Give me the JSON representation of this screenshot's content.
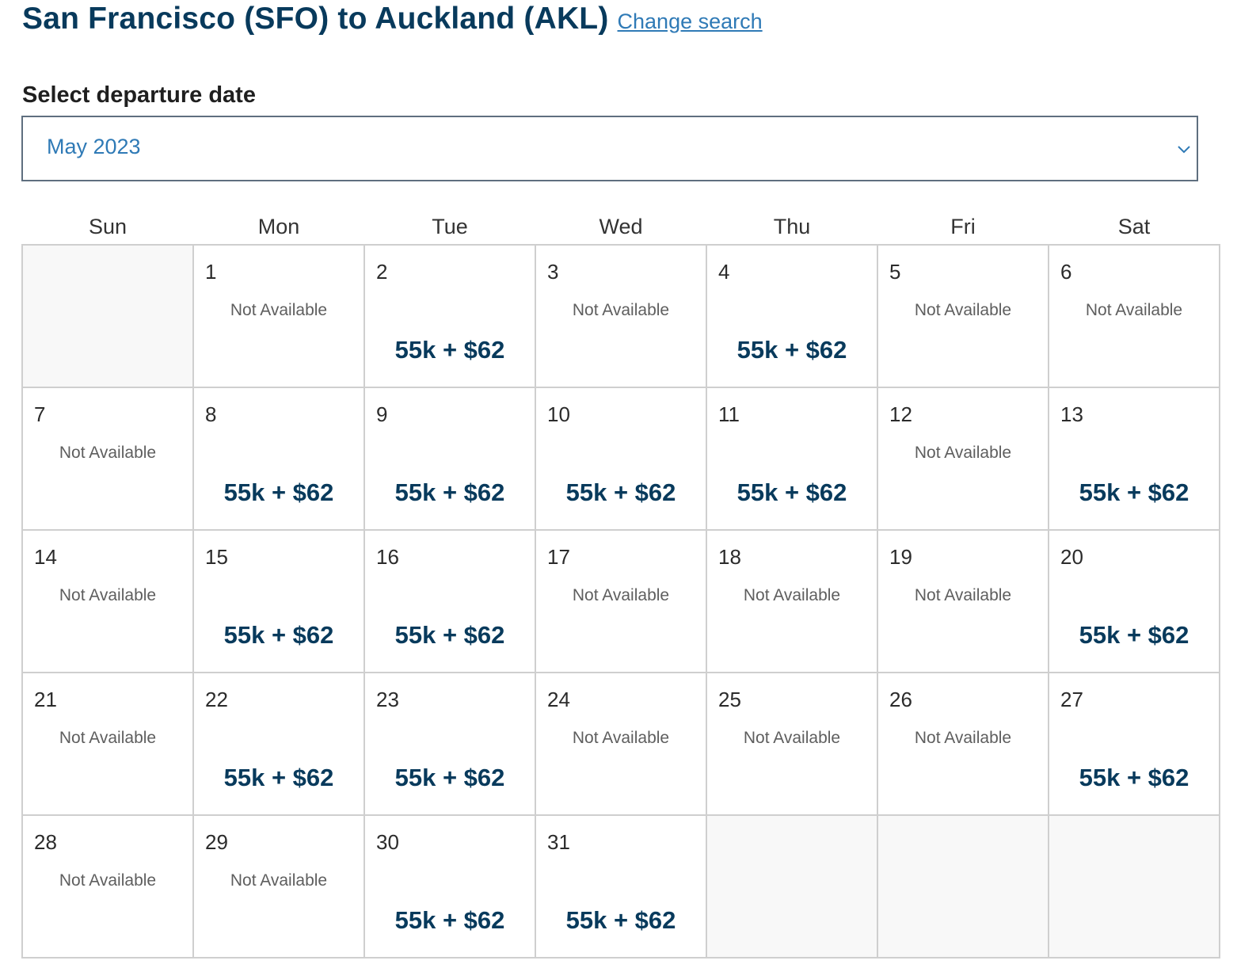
{
  "header": {
    "title": "San Francisco (SFO) to Auckland (AKL)",
    "change_search": "Change search"
  },
  "date_picker": {
    "label": "Select departure date",
    "selected_month": "May 2023"
  },
  "weekdays": [
    "Sun",
    "Mon",
    "Tue",
    "Wed",
    "Thu",
    "Fri",
    "Sat"
  ],
  "calendar": {
    "first_weekday_index": 1,
    "days": [
      {
        "day": "1",
        "status": "Not Available"
      },
      {
        "day": "2",
        "price": "55k + $62"
      },
      {
        "day": "3",
        "status": "Not Available"
      },
      {
        "day": "4",
        "price": "55k + $62"
      },
      {
        "day": "5",
        "status": "Not Available"
      },
      {
        "day": "6",
        "status": "Not Available"
      },
      {
        "day": "7",
        "status": "Not Available"
      },
      {
        "day": "8",
        "price": "55k + $62"
      },
      {
        "day": "9",
        "price": "55k + $62"
      },
      {
        "day": "10",
        "price": "55k + $62"
      },
      {
        "day": "11",
        "price": "55k + $62"
      },
      {
        "day": "12",
        "status": "Not Available"
      },
      {
        "day": "13",
        "price": "55k + $62"
      },
      {
        "day": "14",
        "status": "Not Available"
      },
      {
        "day": "15",
        "price": "55k + $62"
      },
      {
        "day": "16",
        "price": "55k + $62"
      },
      {
        "day": "17",
        "status": "Not Available"
      },
      {
        "day": "18",
        "status": "Not Available"
      },
      {
        "day": "19",
        "status": "Not Available"
      },
      {
        "day": "20",
        "price": "55k + $62"
      },
      {
        "day": "21",
        "status": "Not Available"
      },
      {
        "day": "22",
        "price": "55k + $62"
      },
      {
        "day": "23",
        "price": "55k + $62"
      },
      {
        "day": "24",
        "status": "Not Available"
      },
      {
        "day": "25",
        "status": "Not Available"
      },
      {
        "day": "26",
        "status": "Not Available"
      },
      {
        "day": "27",
        "price": "55k + $62"
      },
      {
        "day": "28",
        "status": "Not Available"
      },
      {
        "day": "29",
        "status": "Not Available"
      },
      {
        "day": "30",
        "price": "55k + $62"
      },
      {
        "day": "31",
        "price": "55k + $62"
      }
    ],
    "trailing_empty_cells": 3
  },
  "colors": {
    "title": "#083a5c",
    "link": "#2f7ab6",
    "price": "#083a5c",
    "grid_border": "#cfcfcf",
    "empty_cell": "#f8f8f8"
  },
  "icons": {
    "dropdown": "chevron-down-icon"
  }
}
